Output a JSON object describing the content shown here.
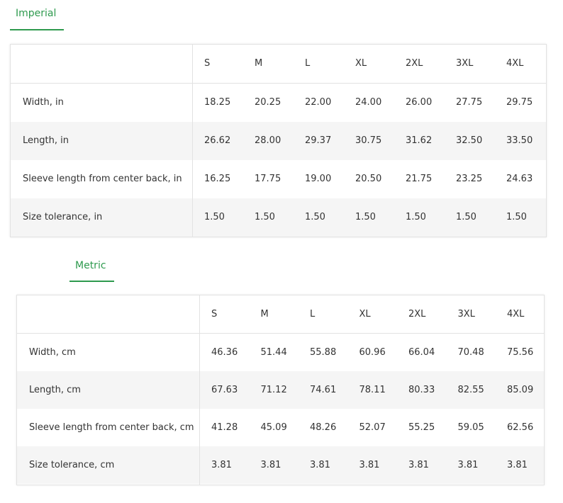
{
  "imperial": {
    "tab": "Imperial",
    "sizes": [
      "S",
      "M",
      "L",
      "XL",
      "2XL",
      "3XL",
      "4XL"
    ],
    "rows": [
      {
        "label": "Width, in",
        "values": [
          "18.25",
          "20.25",
          "22.00",
          "24.00",
          "26.00",
          "27.75",
          "29.75"
        ]
      },
      {
        "label": "Length, in",
        "values": [
          "26.62",
          "28.00",
          "29.37",
          "30.75",
          "31.62",
          "32.50",
          "33.50"
        ]
      },
      {
        "label": "Sleeve length from center back, in",
        "values": [
          "16.25",
          "17.75",
          "19.00",
          "20.50",
          "21.75",
          "23.25",
          "24.63"
        ]
      },
      {
        "label": "Size tolerance, in",
        "values": [
          "1.50",
          "1.50",
          "1.50",
          "1.50",
          "1.50",
          "1.50",
          "1.50"
        ]
      }
    ]
  },
  "metric": {
    "tab": "Metric",
    "sizes": [
      "S",
      "M",
      "L",
      "XL",
      "2XL",
      "3XL",
      "4XL"
    ],
    "rows": [
      {
        "label": "Width, cm",
        "values": [
          "46.36",
          "51.44",
          "55.88",
          "60.96",
          "66.04",
          "70.48",
          "75.56"
        ]
      },
      {
        "label": "Length, cm",
        "values": [
          "67.63",
          "71.12",
          "74.61",
          "78.11",
          "80.33",
          "82.55",
          "85.09"
        ]
      },
      {
        "label": "Sleeve length from center back, cm",
        "values": [
          "41.28",
          "45.09",
          "48.26",
          "52.07",
          "55.25",
          "59.05",
          "62.56"
        ]
      },
      {
        "label": "Size tolerance, cm",
        "values": [
          "3.81",
          "3.81",
          "3.81",
          "3.81",
          "3.81",
          "3.81",
          "3.81"
        ]
      }
    ]
  }
}
